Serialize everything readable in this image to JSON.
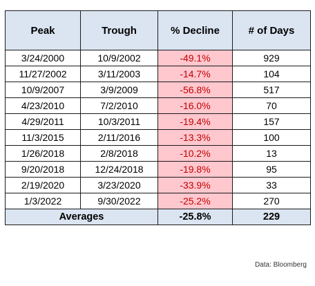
{
  "table": {
    "headers": {
      "peak": "Peak",
      "trough": "Trough",
      "decline": "% Decline",
      "days": "# of Days"
    },
    "rows": [
      {
        "peak": "3/24/2000",
        "trough": "10/9/2002",
        "decline": "-49.1%",
        "days": "929"
      },
      {
        "peak": "11/27/2002",
        "trough": "3/11/2003",
        "decline": "-14.7%",
        "days": "104"
      },
      {
        "peak": "10/9/2007",
        "trough": "3/9/2009",
        "decline": "-56.8%",
        "days": "517"
      },
      {
        "peak": "4/23/2010",
        "trough": "7/2/2010",
        "decline": "-16.0%",
        "days": "70"
      },
      {
        "peak": "4/29/2011",
        "trough": "10/3/2011",
        "decline": "-19.4%",
        "days": "157"
      },
      {
        "peak": "11/3/2015",
        "trough": "2/11/2016",
        "decline": "-13.3%",
        "days": "100"
      },
      {
        "peak": "1/26/2018",
        "trough": "2/8/2018",
        "decline": "-10.2%",
        "days": "13"
      },
      {
        "peak": "9/20/2018",
        "trough": "12/24/2018",
        "decline": "-19.8%",
        "days": "95"
      },
      {
        "peak": "2/19/2020",
        "trough": "3/23/2020",
        "decline": "-33.9%",
        "days": "33"
      },
      {
        "peak": "1/3/2022",
        "trough": "9/30/2022",
        "decline": "-25.2%",
        "days": "270"
      }
    ],
    "footer": {
      "label": "Averages",
      "decline": "-25.8%",
      "days": "229"
    }
  },
  "source_note": "Data: Bloomberg",
  "colors": {
    "header_fill": "#dbe4f1",
    "decline_fill": "#ffc7ce",
    "decline_text": "#c00000"
  }
}
